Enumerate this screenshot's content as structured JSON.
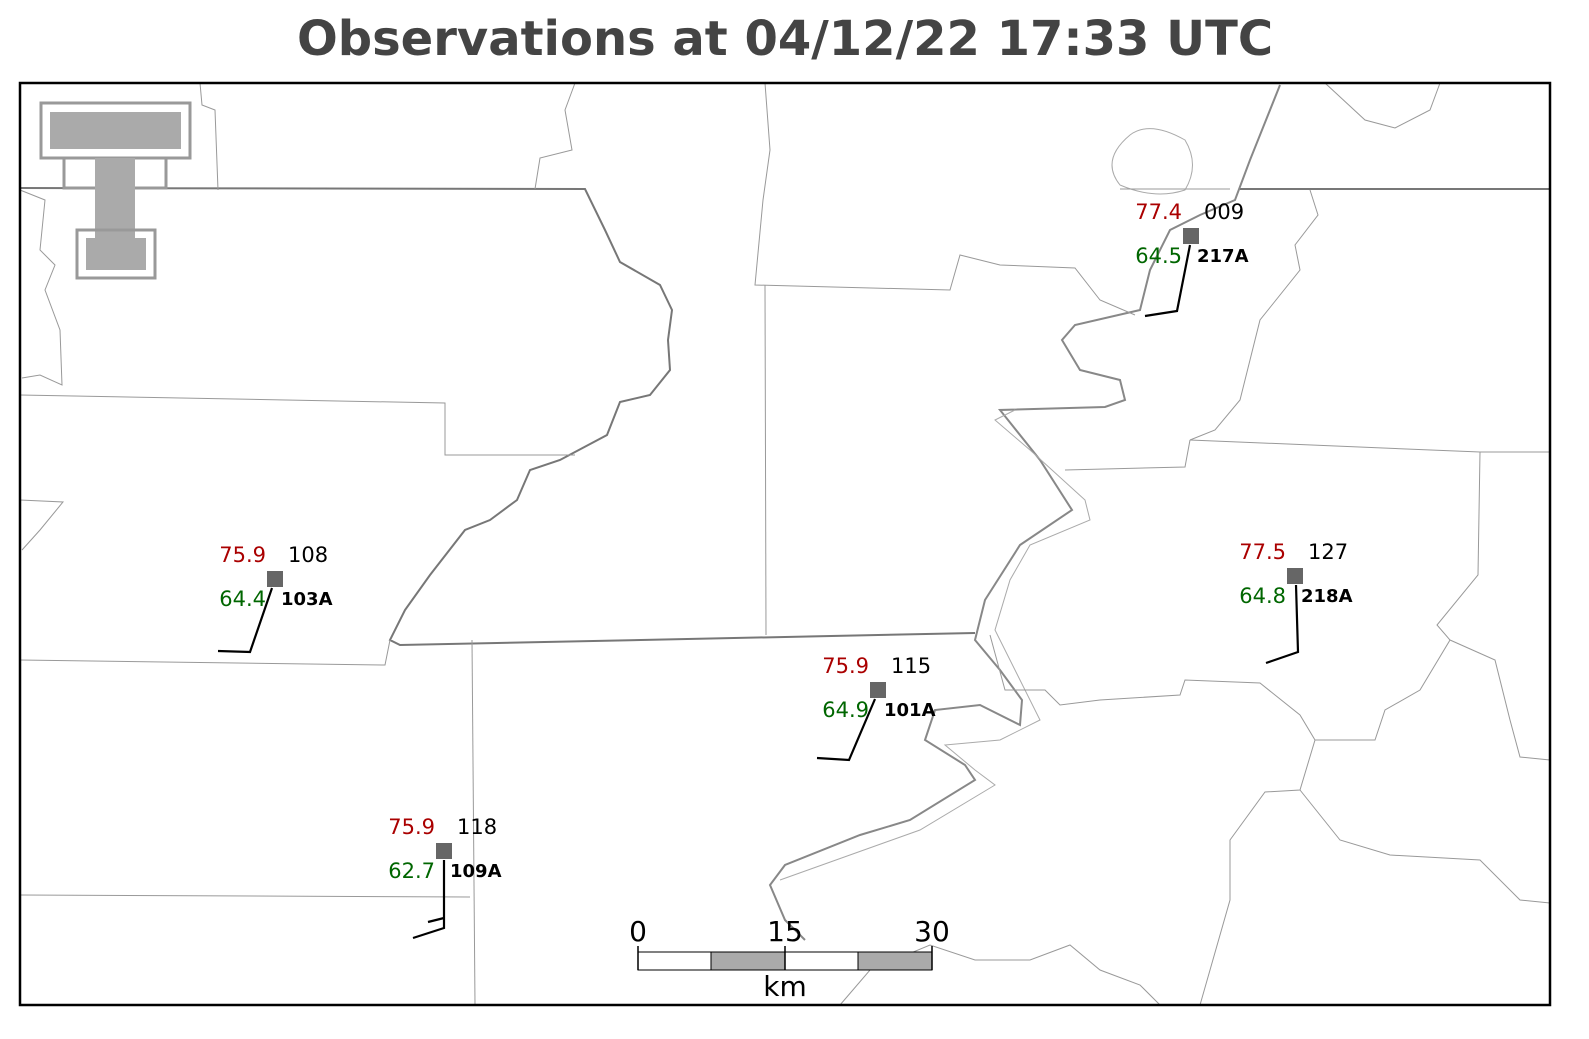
{
  "title": "Observations at 04/12/22 17:33 UTC",
  "stations": [
    {
      "temperature": 77.4,
      "pressure": "009",
      "dewpoint": 64.5,
      "id": "217A"
    },
    {
      "temperature": 75.9,
      "pressure": "108",
      "dewpoint": 64.4,
      "id": "103A"
    },
    {
      "temperature": 77.5,
      "pressure": "127",
      "dewpoint": 64.8,
      "id": "218A"
    },
    {
      "temperature": 75.9,
      "pressure": "115",
      "dewpoint": 64.9,
      "id": "101A"
    },
    {
      "temperature": 75.9,
      "pressure": "118",
      "dewpoint": 62.7,
      "id": "109A"
    }
  ],
  "scale_bar": {
    "ticks": [
      0,
      15,
      30
    ],
    "unit": "km"
  }
}
